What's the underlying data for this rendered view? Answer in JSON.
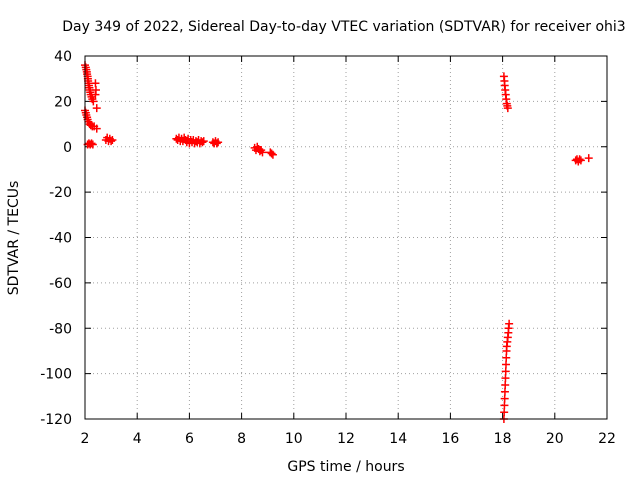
{
  "chart_data": {
    "type": "scatter",
    "title": "Day 349 of 2022, Sidereal Day-to-day VTEC variation (SDTVAR) for receiver ohi3",
    "xlabel": "GPS time / hours",
    "ylabel": "SDTVAR / TECUs",
    "xlim": [
      2,
      22
    ],
    "ylim": [
      -120,
      40
    ],
    "xticks": [
      2,
      4,
      6,
      8,
      10,
      12,
      14,
      16,
      18,
      20,
      22
    ],
    "yticks": [
      -120,
      -100,
      -80,
      -60,
      -40,
      -20,
      0,
      20,
      40
    ],
    "grid": true,
    "marker": "+",
    "color": "#ff0000",
    "series": [
      {
        "name": "SDTVAR",
        "points": [
          [
            2.0,
            36
          ],
          [
            2.03,
            35
          ],
          [
            2.05,
            34
          ],
          [
            2.07,
            33
          ],
          [
            2.08,
            32
          ],
          [
            2.1,
            31
          ],
          [
            2.11,
            30
          ],
          [
            2.12,
            29
          ],
          [
            2.13,
            28
          ],
          [
            2.15,
            27
          ],
          [
            2.17,
            26
          ],
          [
            2.18,
            25
          ],
          [
            2.2,
            24
          ],
          [
            2.22,
            23
          ],
          [
            2.25,
            22
          ],
          [
            2.28,
            21
          ],
          [
            2.32,
            20
          ],
          [
            2.4,
            28
          ],
          [
            2.42,
            25
          ],
          [
            2.4,
            23
          ],
          [
            2.45,
            17
          ],
          [
            2.0,
            16
          ],
          [
            2.03,
            15
          ],
          [
            2.05,
            14
          ],
          [
            2.08,
            13
          ],
          [
            2.1,
            12
          ],
          [
            2.13,
            11
          ],
          [
            2.18,
            10
          ],
          [
            2.22,
            9.5
          ],
          [
            2.28,
            9
          ],
          [
            2.35,
            9
          ],
          [
            2.45,
            8
          ],
          [
            2.1,
            1
          ],
          [
            2.15,
            1.5
          ],
          [
            2.2,
            1
          ],
          [
            2.25,
            1.5
          ],
          [
            2.3,
            1
          ],
          [
            2.8,
            3
          ],
          [
            2.85,
            4
          ],
          [
            2.9,
            2.5
          ],
          [
            2.95,
            3.5
          ],
          [
            3.0,
            2.5
          ],
          [
            3.05,
            3
          ],
          [
            5.5,
            3.5
          ],
          [
            5.55,
            3
          ],
          [
            5.6,
            4
          ],
          [
            5.65,
            2.5
          ],
          [
            5.7,
            3.5
          ],
          [
            5.75,
            2.5
          ],
          [
            5.8,
            4
          ],
          [
            5.85,
            3
          ],
          [
            5.9,
            2
          ],
          [
            5.95,
            3.5
          ],
          [
            6.0,
            1.5
          ],
          [
            6.05,
            3
          ],
          [
            6.1,
            2
          ],
          [
            6.15,
            3
          ],
          [
            6.2,
            1.5
          ],
          [
            6.25,
            2.5
          ],
          [
            6.3,
            2
          ],
          [
            6.35,
            3
          ],
          [
            6.4,
            1.5
          ],
          [
            6.45,
            2.5
          ],
          [
            6.5,
            2
          ],
          [
            6.55,
            2.5
          ],
          [
            6.9,
            2
          ],
          [
            6.95,
            1.5
          ],
          [
            7.0,
            2.5
          ],
          [
            7.05,
            1.5
          ],
          [
            7.1,
            2
          ],
          [
            8.5,
            -0.5
          ],
          [
            8.55,
            -1.5
          ],
          [
            8.6,
            0
          ],
          [
            8.65,
            -1
          ],
          [
            8.7,
            -2
          ],
          [
            8.75,
            -1.5
          ],
          [
            8.8,
            -2.5
          ],
          [
            9.1,
            -2.5
          ],
          [
            9.15,
            -3
          ],
          [
            9.2,
            -3.5
          ],
          [
            18.05,
            31
          ],
          [
            18.07,
            29
          ],
          [
            18.08,
            27
          ],
          [
            18.1,
            25
          ],
          [
            18.12,
            23
          ],
          [
            18.14,
            21
          ],
          [
            18.16,
            19
          ],
          [
            18.18,
            18
          ],
          [
            18.2,
            17
          ],
          [
            18.05,
            -120
          ],
          [
            18.06,
            -117
          ],
          [
            18.07,
            -114
          ],
          [
            18.08,
            -111
          ],
          [
            18.09,
            -108
          ],
          [
            18.1,
            -105
          ],
          [
            18.11,
            -102
          ],
          [
            18.12,
            -99
          ],
          [
            18.13,
            -96
          ],
          [
            18.14,
            -93
          ],
          [
            18.15,
            -90
          ],
          [
            18.16,
            -88
          ],
          [
            18.18,
            -86
          ],
          [
            18.2,
            -84
          ],
          [
            18.22,
            -82
          ],
          [
            18.23,
            -80
          ],
          [
            18.25,
            -78
          ],
          [
            20.8,
            -6
          ],
          [
            20.85,
            -5.5
          ],
          [
            20.9,
            -6.5
          ],
          [
            20.95,
            -5.5
          ],
          [
            21.0,
            -6
          ],
          [
            21.3,
            -5
          ]
        ]
      }
    ]
  }
}
